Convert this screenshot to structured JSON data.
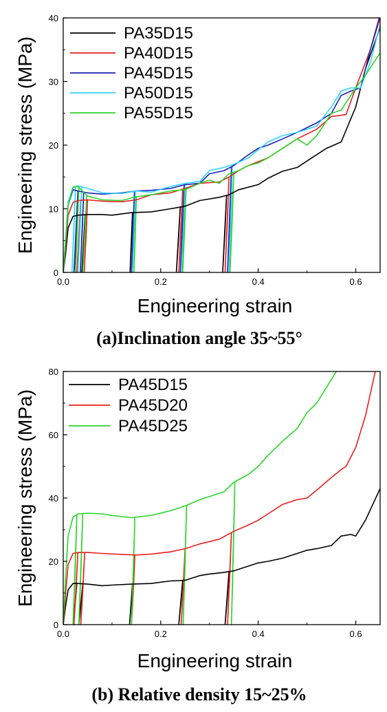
{
  "chart_data": [
    {
      "type": "line",
      "caption": "(a)Inclination angle 35~55°",
      "xlabel": "Engineering strain",
      "ylabel": "Engineering stress (MPa)",
      "xlim": [
        0,
        0.65
      ],
      "ylim": [
        0,
        40
      ],
      "xticks": [
        "0.0",
        "0.2",
        "0.4",
        "0.6"
      ],
      "yticks": [
        "0",
        "10",
        "20",
        "30",
        "40"
      ],
      "xtick_values": [
        0,
        0.2,
        0.4,
        0.6
      ],
      "ytick_values": [
        0,
        10,
        20,
        30,
        40
      ],
      "grid": false,
      "legend_position": "top-left",
      "series": [
        {
          "name": "PA35D15",
          "color": "#000000",
          "x": [
            0.0,
            0.005,
            0.01,
            0.02,
            0.03,
            0.05,
            0.08,
            0.1,
            0.14,
            0.18,
            0.22,
            0.25,
            0.28,
            0.32,
            0.34,
            0.36,
            0.4,
            0.42,
            0.45,
            0.48,
            0.5,
            0.54,
            0.57,
            0.6,
            0.62,
            0.65
          ],
          "y": [
            0.0,
            3.0,
            7.0,
            8.8,
            9.0,
            9.1,
            9.1,
            9.0,
            9.4,
            9.5,
            10.0,
            10.4,
            11.3,
            11.8,
            12.2,
            13.0,
            13.8,
            14.8,
            15.9,
            16.5,
            17.5,
            19.5,
            20.5,
            26.0,
            32.0,
            38.5
          ]
        },
        {
          "name": "PA40D15",
          "color": "#e81e1e",
          "x": [
            0.0,
            0.005,
            0.01,
            0.02,
            0.03,
            0.05,
            0.08,
            0.12,
            0.15,
            0.18,
            0.22,
            0.25,
            0.28,
            0.32,
            0.34,
            0.36,
            0.38,
            0.42,
            0.45,
            0.48,
            0.52,
            0.55,
            0.58,
            0.6,
            0.63,
            0.65
          ],
          "y": [
            0.0,
            4.0,
            9.0,
            11.0,
            11.3,
            11.4,
            11.2,
            11.1,
            11.4,
            12.2,
            12.5,
            13.2,
            14.0,
            14.2,
            15.0,
            16.0,
            16.8,
            18.0,
            19.5,
            21.0,
            22.5,
            24.5,
            24.8,
            29.0,
            35.0,
            40.0
          ]
        },
        {
          "name": "PA45D15",
          "color": "#1b1fb4",
          "x": [
            0.0,
            0.005,
            0.01,
            0.02,
            0.03,
            0.05,
            0.08,
            0.12,
            0.15,
            0.18,
            0.22,
            0.25,
            0.28,
            0.3,
            0.33,
            0.35,
            0.38,
            0.4,
            0.42,
            0.45,
            0.48,
            0.52,
            0.55,
            0.57,
            0.59,
            0.61,
            0.63,
            0.65
          ],
          "y": [
            0.0,
            5.0,
            10.5,
            13.0,
            12.8,
            12.5,
            12.3,
            12.5,
            12.8,
            12.9,
            13.2,
            13.8,
            14.0,
            15.5,
            16.0,
            16.8,
            18.5,
            19.5,
            20.0,
            21.0,
            22.0,
            23.5,
            25.0,
            27.8,
            28.5,
            29.0,
            35.0,
            40.5
          ]
        },
        {
          "name": "PA50D15",
          "color": "#2fd2ff",
          "x": [
            0.0,
            0.005,
            0.01,
            0.02,
            0.03,
            0.05,
            0.08,
            0.12,
            0.15,
            0.18,
            0.22,
            0.25,
            0.28,
            0.3,
            0.33,
            0.35,
            0.38,
            0.4,
            0.42,
            0.45,
            0.48,
            0.52,
            0.55,
            0.57,
            0.59,
            0.61,
            0.63,
            0.65
          ],
          "y": [
            0.0,
            5.5,
            11.0,
            13.4,
            13.6,
            13.2,
            12.5,
            12.4,
            12.8,
            12.6,
            13.5,
            14.0,
            14.3,
            16.0,
            16.5,
            17.0,
            18.0,
            19.3,
            20.5,
            21.5,
            22.0,
            23.0,
            26.0,
            28.5,
            29.0,
            29.0,
            33.0,
            39.0
          ]
        },
        {
          "name": "PA55D15",
          "color": "#28d628",
          "x": [
            0.0,
            0.005,
            0.01,
            0.02,
            0.03,
            0.05,
            0.08,
            0.12,
            0.15,
            0.18,
            0.22,
            0.25,
            0.28,
            0.3,
            0.32,
            0.34,
            0.36,
            0.38,
            0.4,
            0.42,
            0.45,
            0.48,
            0.5,
            0.52,
            0.55,
            0.57,
            0.6,
            0.62,
            0.65
          ],
          "y": [
            0.0,
            5.0,
            10.5,
            13.4,
            13.5,
            12.0,
            11.4,
            11.3,
            11.9,
            12.2,
            12.8,
            13.0,
            14.0,
            14.5,
            14.0,
            15.5,
            16.0,
            16.8,
            17.2,
            18.0,
            19.5,
            21.0,
            20.0,
            21.5,
            25.0,
            25.5,
            29.0,
            31.0,
            34.5
          ]
        }
      ],
      "unloading": [
        {
          "color": "#000000",
          "x_top": [
            0.03,
            0.045,
            0.142,
            0.24,
            0.335
          ],
          "x_bottom": [
            0.022,
            0.038,
            0.137,
            0.232,
            0.327
          ]
        },
        {
          "color": "#e81e1e",
          "x_top": [
            0.036,
            0.05,
            0.146,
            0.245,
            0.34
          ],
          "x_bottom": [
            0.028,
            0.043,
            0.14,
            0.237,
            0.332
          ]
        },
        {
          "color": "#1b1fb4",
          "x_top": [
            0.03,
            0.042,
            0.146,
            0.248,
            0.345
          ],
          "x_bottom": [
            0.022,
            0.035,
            0.14,
            0.24,
            0.337
          ]
        },
        {
          "color": "#2fd2ff",
          "x_top": [
            0.025,
            0.038,
            0.148,
            0.25,
            0.347
          ],
          "x_bottom": [
            0.018,
            0.03,
            0.142,
            0.243,
            0.34
          ]
        },
        {
          "color": "#28d628",
          "x_top": [
            0.032,
            0.048,
            0.15,
            0.252,
            0.35
          ],
          "x_bottom": [
            0.025,
            0.04,
            0.145,
            0.245,
            0.342
          ]
        }
      ]
    },
    {
      "type": "line",
      "caption": "(b) Relative density 15~25%",
      "xlabel": "Engineering strain",
      "ylabel": "Engineering stress (MPa)",
      "xlim": [
        0,
        0.65
      ],
      "ylim": [
        0,
        80
      ],
      "xticks": [
        "0.0",
        "0.2",
        "0.4",
        "0.6"
      ],
      "yticks": [
        "0",
        "20",
        "40",
        "60",
        "80"
      ],
      "xtick_values": [
        0,
        0.2,
        0.4,
        0.6
      ],
      "ytick_values": [
        0,
        20,
        40,
        60,
        80
      ],
      "grid": false,
      "legend_position": "top-left",
      "series": [
        {
          "name": "PA45D15",
          "color": "#000000",
          "x": [
            0.0,
            0.005,
            0.01,
            0.02,
            0.03,
            0.05,
            0.08,
            0.1,
            0.14,
            0.18,
            0.22,
            0.25,
            0.28,
            0.3,
            0.33,
            0.35,
            0.38,
            0.4,
            0.42,
            0.45,
            0.48,
            0.5,
            0.52,
            0.55,
            0.57,
            0.59,
            0.6,
            0.62,
            0.65
          ],
          "y": [
            0.0,
            6.0,
            11.0,
            13.0,
            13.0,
            12.8,
            12.3,
            12.5,
            12.8,
            13.0,
            13.8,
            14.0,
            15.5,
            16.0,
            16.5,
            17.0,
            18.5,
            19.5,
            20.0,
            21.0,
            22.5,
            23.5,
            24.0,
            25.0,
            28.0,
            28.5,
            28.0,
            33.0,
            43.0
          ]
        },
        {
          "name": "PA45D20",
          "color": "#e81e1e",
          "x": [
            0.0,
            0.005,
            0.01,
            0.02,
            0.03,
            0.05,
            0.08,
            0.12,
            0.15,
            0.18,
            0.22,
            0.25,
            0.28,
            0.32,
            0.35,
            0.38,
            0.4,
            0.42,
            0.45,
            0.48,
            0.5,
            0.52,
            0.55,
            0.57,
            0.58,
            0.6,
            0.62,
            0.64
          ],
          "y": [
            0.0,
            10.0,
            19.0,
            22.5,
            22.8,
            22.8,
            22.5,
            22.2,
            22.0,
            22.3,
            23.0,
            24.0,
            25.5,
            27.0,
            29.5,
            31.5,
            33.0,
            35.0,
            38.0,
            39.5,
            40.0,
            42.5,
            46.5,
            49.0,
            50.0,
            56.0,
            66.0,
            80.0
          ]
        },
        {
          "name": "PA45D25",
          "color": "#28d628",
          "x": [
            0.0,
            0.005,
            0.01,
            0.02,
            0.03,
            0.05,
            0.08,
            0.1,
            0.14,
            0.18,
            0.22,
            0.25,
            0.28,
            0.3,
            0.33,
            0.35,
            0.38,
            0.4,
            0.42,
            0.45,
            0.48,
            0.5,
            0.52,
            0.54,
            0.56
          ],
          "y": [
            0.0,
            15.0,
            28.0,
            34.0,
            35.0,
            35.2,
            35.0,
            34.5,
            33.8,
            34.5,
            36.0,
            37.5,
            39.5,
            40.5,
            42.0,
            45.0,
            47.5,
            50.0,
            53.5,
            58.0,
            62.0,
            67.0,
            70.0,
            75.0,
            80.0
          ]
        }
      ],
      "unloading": [
        {
          "color": "#000000",
          "x_top": [
            0.028,
            0.04,
            0.142,
            0.245,
            0.34
          ],
          "x_bottom": [
            0.02,
            0.032,
            0.136,
            0.237,
            0.332
          ]
        },
        {
          "color": "#e81e1e",
          "x_top": [
            0.03,
            0.044,
            0.147,
            0.25,
            0.345
          ],
          "x_bottom": [
            0.022,
            0.036,
            0.14,
            0.242,
            0.337
          ]
        },
        {
          "color": "#28d628",
          "x_top": [
            0.028,
            0.04,
            0.147,
            0.253,
            0.352
          ],
          "x_bottom": [
            0.02,
            0.032,
            0.14,
            0.246,
            0.345
          ]
        }
      ]
    }
  ]
}
